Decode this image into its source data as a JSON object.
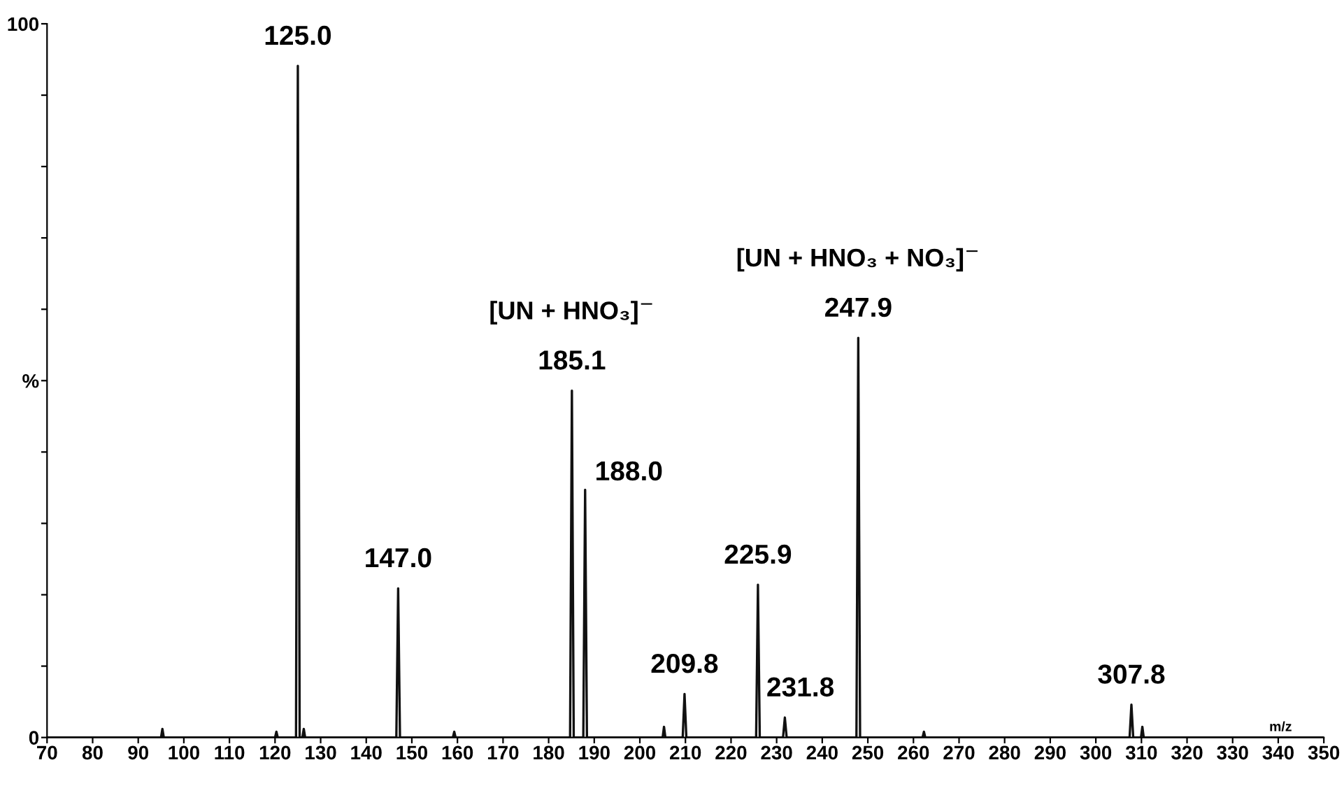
{
  "chart_data": {
    "type": "line",
    "xlabel": "m/z",
    "x": [
      70,
      95,
      95.3,
      95.6,
      120,
      120.3,
      120.6,
      124.6,
      125.0,
      125.4,
      126,
      126.3,
      126.6,
      146.6,
      147.0,
      147.4,
      159,
      159.3,
      159.6,
      184.7,
      185.1,
      185.5,
      187.6,
      188.0,
      188.4,
      205,
      205.3,
      205.6,
      209.4,
      209.8,
      210.2,
      225.5,
      225.9,
      226.3,
      231.4,
      231.8,
      232.2,
      247.5,
      247.9,
      248.3,
      262,
      262.3,
      262.6,
      307.4,
      307.8,
      308.2,
      309.9,
      310.2,
      310.5,
      350
    ],
    "values": [
      0,
      0,
      1.2,
      0,
      0,
      0.8,
      0,
      0,
      94.1,
      0,
      0,
      1.2,
      0,
      0,
      20.9,
      0,
      0,
      0.8,
      0,
      0,
      48.6,
      0,
      0,
      34.7,
      0,
      0,
      1.5,
      0,
      0,
      6.1,
      0,
      0,
      21.4,
      0,
      0,
      2.8,
      0,
      0,
      56.0,
      0,
      0,
      0.8,
      0,
      0,
      4.6,
      0,
      0,
      1.5,
      0,
      0
    ],
    "color": "#111111",
    "xlim": [
      70,
      350
    ],
    "xticks": [
      70,
      80,
      90,
      100,
      110,
      120,
      130,
      140,
      150,
      160,
      170,
      180,
      190,
      200,
      210,
      220,
      230,
      240,
      250,
      260,
      270,
      280,
      290,
      300,
      310,
      320,
      330,
      340,
      350
    ],
    "ylim": [
      0,
      100
    ],
    "yticks": [
      0,
      {
        "value": 10,
        "label": null
      },
      {
        "value": 20,
        "label": null
      },
      {
        "value": 30,
        "label": null
      },
      {
        "value": 40,
        "label": null
      },
      {
        "value": 50,
        "label": "%"
      },
      {
        "value": 60,
        "label": null
      },
      {
        "value": 70,
        "label": null
      },
      {
        "value": 80,
        "label": null
      },
      {
        "value": 90,
        "label": null
      },
      100
    ],
    "grid": false,
    "annotations": [
      {
        "text": "125.0",
        "x": 125.0,
        "y": 94.1
      },
      {
        "text": "147.0",
        "x": 147.0,
        "y": 20.9
      },
      {
        "text": "185.1",
        "x": 185.1,
        "y": 48.6
      },
      {
        "text": "188.0",
        "x": 188.0,
        "y": 34.7
      },
      {
        "text": "209.8",
        "x": 209.8,
        "y": 6.1
      },
      {
        "text": "225.9",
        "x": 225.9,
        "y": 21.4
      },
      {
        "text": "231.8",
        "x": 231.8,
        "y": 2.8
      },
      {
        "text": "247.9",
        "x": 247.9,
        "y": 56.0
      },
      {
        "text": "307.8",
        "x": 307.8,
        "y": 4.6
      },
      {
        "text": "[UN + HNO₃]$^{−}$",
        "x": 185.1,
        "y": 48.6
      },
      {
        "text": "[UN + HNO₃ + NO₃]$^{−}$",
        "x": 247.9,
        "y": 56.0
      }
    ]
  }
}
